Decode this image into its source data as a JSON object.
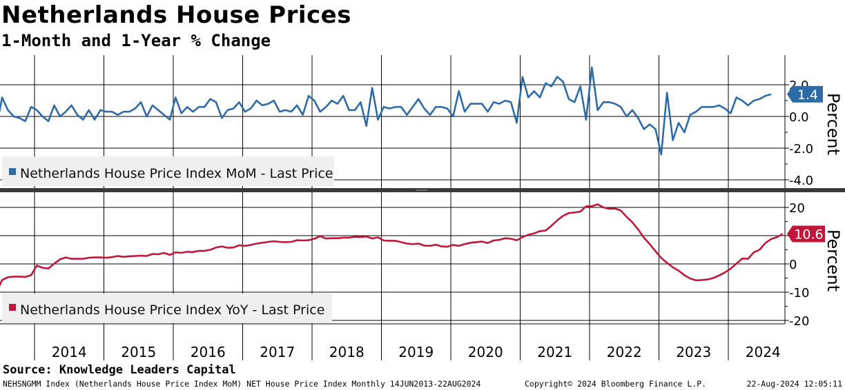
{
  "title": "Netherlands House Prices",
  "subtitle": "1-Month and 1-Year % Change",
  "source": "Source: Knowledge Leaders Capital",
  "footer": {
    "left": "NEHSNGMM Index (Netherlands House Price Index MoM) NET House Price Index  Monthly 14JUN2013-22AUG2024",
    "middle": "Copyright© 2024 Bloomberg Finance L.P.",
    "right": "22-Aug-2024 12:05:11"
  },
  "colors": {
    "mom": "#2d6aa8",
    "yoy": "#c0163a",
    "grid": "#000000",
    "legend_bg": "#efefef"
  },
  "chart_data": [
    {
      "type": "line",
      "name": "mom",
      "legend": "Netherlands House Price Index MoM - Last Price",
      "ylabel": "Percent",
      "ylim": [
        -4.5,
        3.5
      ],
      "yticks": [
        2.0,
        0.0,
        -2.0,
        -4.0
      ],
      "ytick_labels": [
        "2.0",
        "0.0",
        "-2.0",
        "-4.0"
      ],
      "last_value": 1.4,
      "last_label": "1.4",
      "x_start": 2013.45,
      "values": [
        -0.7,
        1.2,
        0.4,
        0.0,
        -0.1,
        -0.3,
        0.6,
        0.4,
        0.0,
        -0.3,
        0.7,
        0.0,
        0.3,
        0.7,
        0.1,
        -0.2,
        0.4,
        -0.2,
        0.4,
        0.3,
        0.3,
        0.1,
        0.3,
        0.3,
        0.5,
        0.9,
        0.0,
        0.7,
        0.4,
        0.1,
        -0.2,
        1.2,
        0.2,
        0.6,
        0.3,
        0.6,
        0.6,
        1.1,
        0.9,
        -0.1,
        0.4,
        0.5,
        0.9,
        0.3,
        0.5,
        1.0,
        0.7,
        0.8,
        1.0,
        0.3,
        0.4,
        0.3,
        0.7,
        0.1,
        1.3,
        1.0,
        0.3,
        0.6,
        1.0,
        0.8,
        1.3,
        0.4,
        0.4,
        0.9,
        -0.6,
        1.8,
        -0.2,
        0.6,
        0.5,
        0.6,
        0.6,
        0.1,
        0.6,
        1.1,
        0.5,
        0.1,
        0.6,
        0.6,
        0.5,
        0.0,
        1.6,
        0.3,
        0.8,
        0.8,
        0.8,
        0.3,
        0.9,
        0.8,
        1.0,
        0.9,
        -0.4,
        2.5,
        1.2,
        1.6,
        1.2,
        2.1,
        1.9,
        2.5,
        2.2,
        1.1,
        0.9,
        1.9,
        -0.2,
        3.1,
        0.4,
        0.9,
        0.9,
        0.8,
        0.6,
        0.0,
        0.4,
        -0.1,
        -0.8,
        -0.5,
        -0.8,
        -2.4,
        1.5,
        -1.5,
        -0.4,
        -1.0,
        0.1,
        0.3,
        0.6,
        0.6,
        0.6,
        0.7,
        0.5,
        0.2,
        1.2,
        1.0,
        0.7,
        1.0,
        1.1,
        1.3,
        1.4
      ]
    },
    {
      "type": "line",
      "name": "yoy",
      "legend": "Netherlands House Price Index YoY - Last Price",
      "ylabel": "Percent",
      "ylim": [
        -22,
        24
      ],
      "yticks": [
        20,
        10,
        0,
        -10,
        -20
      ],
      "ytick_labels": [
        "20",
        "10",
        "0",
        "-10",
        "-20"
      ],
      "last_value": 10.6,
      "last_label": "10.6",
      "x_start": 2013.45,
      "values": [
        -10.0,
        -5.7,
        -4.7,
        -4.5,
        -4.5,
        -4.6,
        -4.0,
        -0.6,
        -1.4,
        -1.6,
        0.1,
        1.6,
        2.3,
        1.8,
        1.8,
        1.8,
        2.2,
        2.3,
        2.3,
        2.2,
        2.4,
        2.8,
        2.5,
        2.7,
        2.8,
        2.9,
        2.8,
        3.5,
        3.4,
        3.9,
        3.2,
        4.1,
        3.9,
        4.3,
        4.2,
        4.6,
        4.6,
        5.0,
        5.8,
        6.2,
        5.7,
        5.8,
        6.6,
        6.4,
        6.7,
        7.2,
        7.5,
        7.8,
        8.0,
        7.8,
        7.7,
        7.8,
        8.4,
        8.3,
        8.4,
        8.9,
        9.8,
        9.0,
        9.1,
        9.1,
        9.3,
        9.3,
        9.6,
        9.5,
        9.7,
        9.0,
        9.4,
        8.3,
        8.2,
        8.2,
        7.7,
        7.2,
        7.0,
        7.2,
        6.5,
        6.4,
        6.8,
        6.2,
        6.1,
        6.7,
        6.4,
        7.0,
        7.5,
        7.7,
        7.9,
        7.4,
        8.3,
        8.5,
        9.1,
        8.9,
        8.4,
        9.5,
        10.3,
        10.8,
        11.6,
        11.8,
        13.5,
        15.4,
        17.0,
        18.0,
        18.2,
        18.5,
        20.4,
        20.4,
        21.1,
        20.0,
        19.5,
        19.6,
        18.9,
        16.7,
        14.7,
        12.2,
        9.3,
        7.0,
        4.5,
        2.1,
        0.4,
        -1.2,
        -2.4,
        -4.0,
        -5.2,
        -5.8,
        -5.7,
        -5.5,
        -5.0,
        -4.1,
        -3.0,
        -1.7,
        0.1,
        1.9,
        1.8,
        4.1,
        5.0,
        7.4,
        8.8,
        9.5,
        10.6
      ]
    }
  ],
  "x_axis": {
    "range": [
      2013,
      2024.75
    ],
    "tick_labels": [
      "2014",
      "2015",
      "2016",
      "2017",
      "2018",
      "2019",
      "2020",
      "2021",
      "2022",
      "2023",
      "2024"
    ]
  }
}
